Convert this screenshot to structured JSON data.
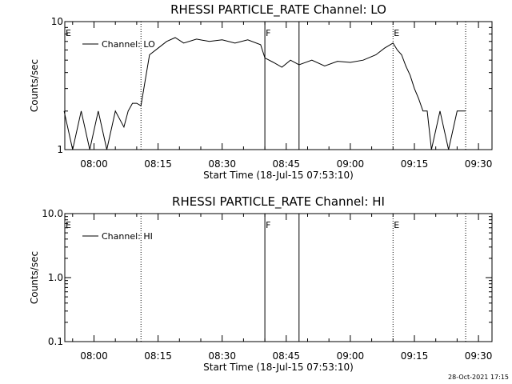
{
  "timestamp": "28-Oct-2021 17:15",
  "chart_data": [
    {
      "type": "line",
      "title": "RHESSI PARTICLE_RATE Channel: LO",
      "xlabel": "Start Time (18-Jul-15 07:53:10)",
      "ylabel": "Counts/sec",
      "y_scale": "log",
      "ylim": [
        1,
        10
      ],
      "xlim": [
        "07:53:10",
        "09:33:10"
      ],
      "x_ticks": [
        "08:00",
        "08:15",
        "08:30",
        "08:45",
        "09:00",
        "09:15",
        "09:30"
      ],
      "y_ticks": [
        "1",
        "10"
      ],
      "legend": {
        "position": "top-left",
        "entries": [
          "Channel: LO"
        ]
      },
      "series": [
        {
          "name": "Channel: LO",
          "x": [
            "07:53",
            "07:55",
            "07:57",
            "07:59",
            "08:01",
            "08:03",
            "08:05",
            "08:07",
            "08:08",
            "08:09",
            "08:10",
            "08:11",
            "08:12",
            "08:13",
            "08:15",
            "08:17",
            "08:19",
            "08:21",
            "08:24",
            "08:27",
            "08:30",
            "08:33",
            "08:36",
            "08:39",
            "08:40",
            "08:42",
            "08:44",
            "08:46",
            "08:48",
            "08:51",
            "08:54",
            "08:57",
            "09:00",
            "09:03",
            "09:06",
            "09:08",
            "09:10",
            "09:11",
            "09:12",
            "09:13",
            "09:14",
            "09:15",
            "09:16",
            "09:17",
            "09:18",
            "09:19",
            "09:21",
            "09:23",
            "09:25",
            "09:27"
          ],
          "values": [
            2.0,
            1.0,
            2.0,
            1.0,
            2.0,
            1.0,
            2.0,
            1.5,
            2.0,
            2.3,
            2.3,
            2.2,
            3.5,
            5.5,
            6.2,
            7.0,
            7.5,
            6.8,
            7.3,
            7.0,
            7.2,
            6.8,
            7.2,
            6.6,
            5.2,
            4.8,
            4.4,
            5.0,
            4.6,
            5.0,
            4.5,
            4.9,
            4.8,
            5.0,
            5.5,
            6.2,
            6.8,
            6.0,
            5.5,
            4.5,
            3.8,
            3.0,
            2.5,
            2.0,
            2.0,
            1.0,
            2.0,
            1.0,
            2.0,
            2.0
          ]
        }
      ],
      "annotations": [
        {
          "text": "E",
          "time": "07:53:10",
          "line": "none"
        },
        {
          "text": "",
          "time": "08:11",
          "line": "dotted"
        },
        {
          "text": "F",
          "time": "08:40",
          "line": "solid"
        },
        {
          "text": "",
          "time": "08:48",
          "line": "solid"
        },
        {
          "text": "E",
          "time": "09:10",
          "line": "dotted"
        },
        {
          "text": "",
          "time": "09:27",
          "line": "dotted"
        }
      ]
    },
    {
      "type": "line",
      "title": "RHESSI PARTICLE_RATE Channel: HI",
      "xlabel": "Start Time (18-Jul-15 07:53:10)",
      "ylabel": "Counts/sec",
      "y_scale": "log",
      "ylim": [
        0.1,
        10.0
      ],
      "xlim": [
        "07:53:10",
        "09:33:10"
      ],
      "x_ticks": [
        "08:00",
        "08:15",
        "08:30",
        "08:45",
        "09:00",
        "09:15",
        "09:30"
      ],
      "y_ticks": [
        "0.1",
        "1.0",
        "10.0"
      ],
      "legend": {
        "position": "top-left",
        "entries": [
          "Channel: HI"
        ]
      },
      "series": [
        {
          "name": "Channel: HI",
          "x": [],
          "values": []
        }
      ],
      "annotations": [
        {
          "text": "E",
          "time": "07:53:10",
          "line": "none"
        },
        {
          "text": "",
          "time": "08:11",
          "line": "dotted"
        },
        {
          "text": "F",
          "time": "08:40",
          "line": "solid"
        },
        {
          "text": "",
          "time": "08:48",
          "line": "solid"
        },
        {
          "text": "E",
          "time": "09:10",
          "line": "dotted"
        },
        {
          "text": "",
          "time": "09:27",
          "line": "dotted"
        }
      ]
    }
  ]
}
